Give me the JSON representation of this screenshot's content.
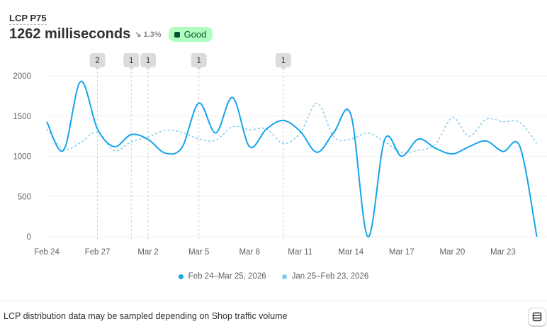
{
  "header": {
    "metric_label": "LCP P75",
    "value": "1262 milliseconds",
    "change": "1.3%",
    "change_direction": "down",
    "status": "Good",
    "status_color": "#affebf"
  },
  "chart_data": {
    "type": "line",
    "x": [
      "Feb 24",
      "Feb 25",
      "Feb 26",
      "Feb 27",
      "Feb 28",
      "Mar 1",
      "Mar 2",
      "Mar 3",
      "Mar 4",
      "Mar 5",
      "Mar 6",
      "Mar 7",
      "Mar 8",
      "Mar 9",
      "Mar 10",
      "Mar 11",
      "Mar 12",
      "Mar 13",
      "Mar 14",
      "Mar 15",
      "Mar 16",
      "Mar 17",
      "Mar 18",
      "Mar 19",
      "Mar 20",
      "Mar 21",
      "Mar 22",
      "Mar 23",
      "Mar 24",
      "Mar 25"
    ],
    "xtick_labels": [
      "Feb 24",
      "Feb 27",
      "Mar 2",
      "Mar 5",
      "Mar 8",
      "Mar 11",
      "Mar 14",
      "Mar 17",
      "Mar 20",
      "Mar 23"
    ],
    "ytick_labels": [
      "0",
      "500",
      "1000",
      "1500",
      "2000"
    ],
    "ylim": [
      0,
      2000
    ],
    "grid": true,
    "legend_placement": "bottom",
    "series": [
      {
        "name": "Feb 24–Mar 25, 2026",
        "color": "#13a4ec",
        "style": "solid",
        "values": [
          1430,
          1075,
          1930,
          1340,
          1120,
          1270,
          1210,
          1040,
          1110,
          1660,
          1290,
          1730,
          1120,
          1340,
          1445,
          1310,
          1050,
          1300,
          1515,
          0,
          1210,
          1000,
          1215,
          1100,
          1030,
          1120,
          1190,
          1060,
          1120,
          0
        ]
      },
      {
        "name": "Jan 25–Feb 23, 2026",
        "color": "#7fcdef",
        "style": "dashed",
        "values": [
          1340,
          1090,
          1170,
          1300,
          1070,
          1180,
          1240,
          1320,
          1300,
          1215,
          1200,
          1370,
          1330,
          1340,
          1160,
          1290,
          1660,
          1240,
          1215,
          1290,
          1180,
          1050,
          1075,
          1150,
          1480,
          1250,
          1460,
          1430,
          1420,
          1160
        ]
      }
    ],
    "annotations": [
      {
        "x": "Feb 27",
        "count": "2"
      },
      {
        "x": "Mar 1",
        "count": "1"
      },
      {
        "x": "Mar 2",
        "count": "1"
      },
      {
        "x": "Mar 5",
        "count": "1"
      },
      {
        "x": "Mar 10",
        "count": "1"
      }
    ]
  },
  "footer": {
    "note": "LCP distribution data may be sampled depending on Shop traffic volume",
    "table_icon": "table-icon"
  }
}
